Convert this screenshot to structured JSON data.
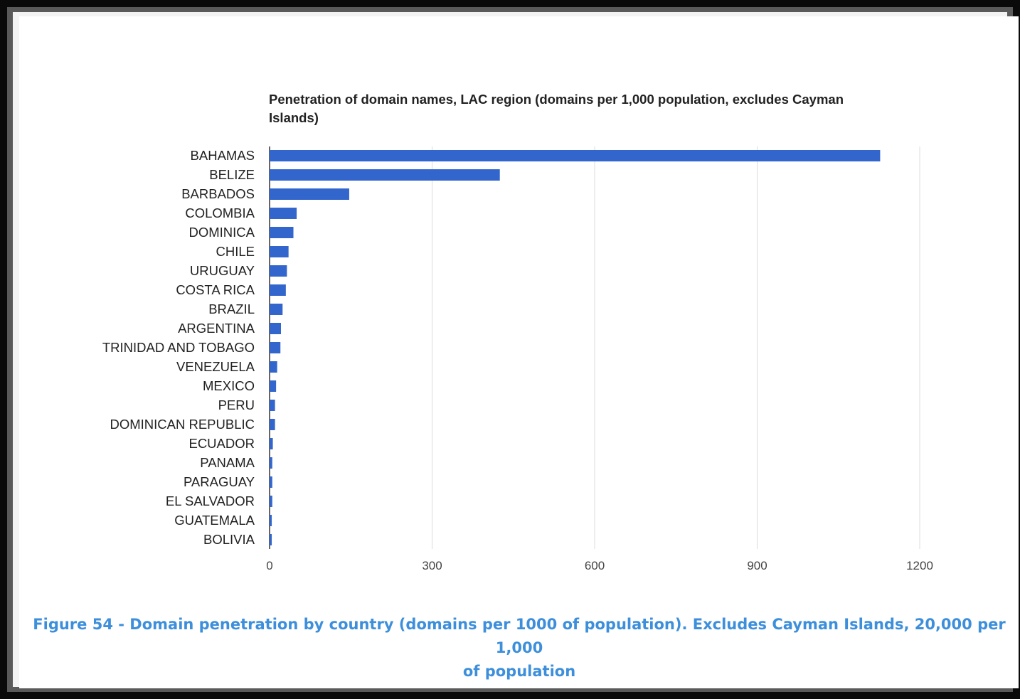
{
  "chart_data": {
    "type": "bar",
    "orientation": "horizontal",
    "title": "Penetration of domain names, LAC region (domains per 1,000 population, excludes Cayman Islands)",
    "xlabel": "",
    "ylabel": "",
    "categories": [
      "BAHAMAS",
      "BELIZE",
      "BARBADOS",
      "COLOMBIA",
      "DOMINICA",
      "CHILE",
      "URUGUAY",
      "COSTA RICA",
      "BRAZIL",
      "ARGENTINA",
      "TRINIDAD AND TOBAGO",
      "VENEZUELA",
      "MEXICO",
      "PERU",
      "DOMINICAN REPUBLIC",
      "ECUADOR",
      "PANAMA",
      "PARAGUAY",
      "EL SALVADOR",
      "GUATEMALA",
      "BOLIVIA"
    ],
    "values": [
      1127,
      425,
      147,
      50,
      44,
      35,
      32,
      30,
      24,
      21,
      20,
      14,
      12,
      10,
      10,
      6,
      5,
      5,
      5,
      4,
      4
    ],
    "xlim": [
      0,
      1200
    ],
    "xticks": [
      "0",
      "300",
      "600",
      "900",
      "1200"
    ],
    "grid": true,
    "legend": "none",
    "bar_color": "#3366cc"
  },
  "figure": {
    "caption_line1": "Figure 54 - Domain penetration by country (domains per 1000 of population). Excludes Cayman Islands, 20,000 per 1,000",
    "caption_line2": "of population"
  },
  "colors": {
    "caption": "#3d8fdb",
    "grid": "#dcdcdc",
    "text": "#222222"
  }
}
